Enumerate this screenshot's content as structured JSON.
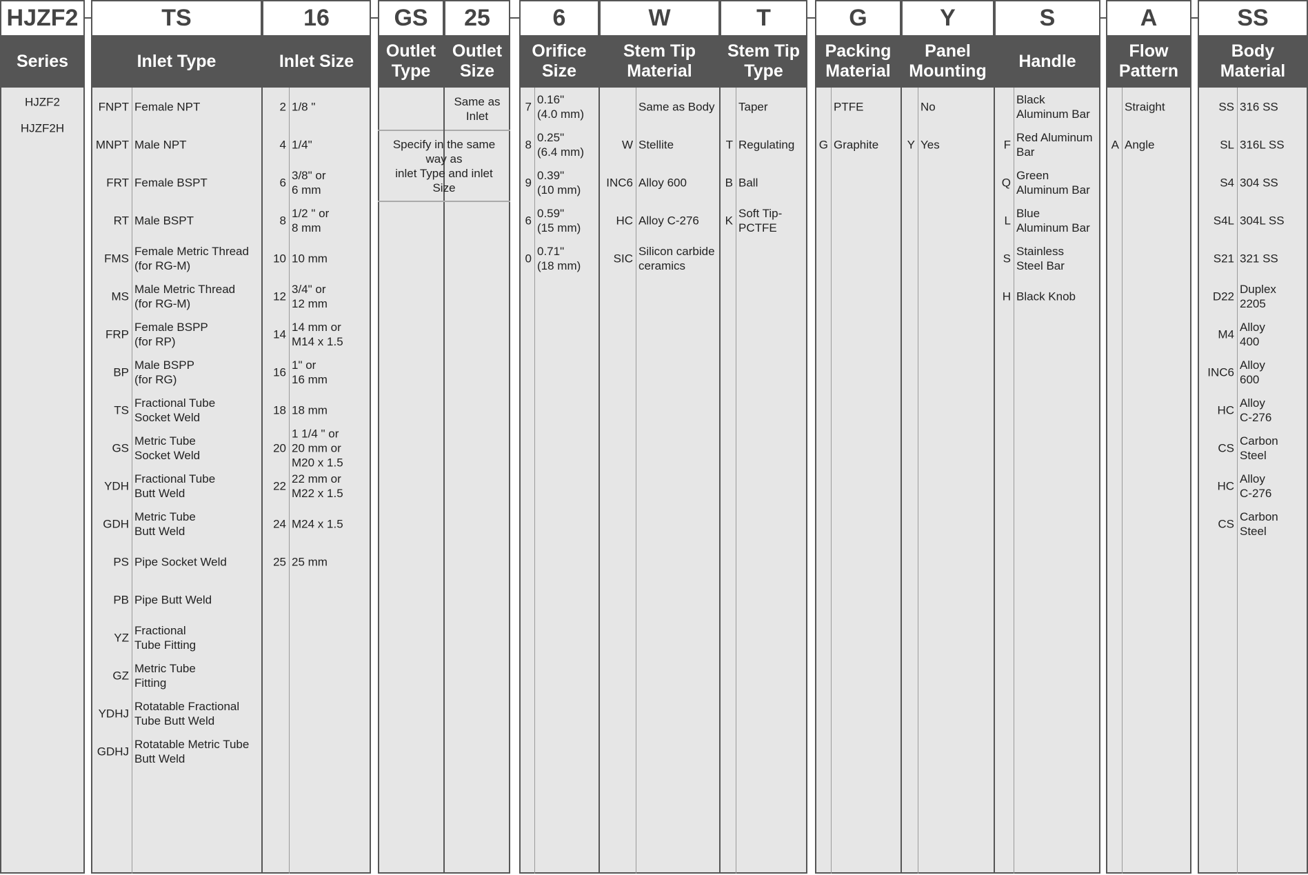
{
  "columns": [
    {
      "key": "series",
      "code": "HJZF2",
      "header": "Series",
      "rows": [
        {
          "code": "",
          "label": "HJZF2"
        },
        {
          "code": "",
          "label": "HJZF2H"
        }
      ]
    },
    {
      "key": "inlet_type",
      "code": "TS",
      "header": "Inlet Type",
      "rows": [
        {
          "code": "FNPT",
          "label": "Female NPT"
        },
        {
          "code": "MNPT",
          "label": "Male NPT"
        },
        {
          "code": "FRT",
          "label": "Female BSPT"
        },
        {
          "code": "RT",
          "label": "Male BSPT"
        },
        {
          "code": "FMS",
          "label": "Female Metric Thread\n(for RG-M)"
        },
        {
          "code": "MS",
          "label": "Male Metric Thread\n(for RG-M)"
        },
        {
          "code": "FRP",
          "label": "Female BSPP\n(for RP)"
        },
        {
          "code": "BP",
          "label": "Male BSPP\n(for RG)"
        },
        {
          "code": "TS",
          "label": "Fractional Tube\nSocket Weld"
        },
        {
          "code": "GS",
          "label": "Metric Tube\nSocket Weld"
        },
        {
          "code": "YDH",
          "label": "Fractional Tube\nButt Weld"
        },
        {
          "code": "GDH",
          "label": "Metric Tube\nButt Weld"
        },
        {
          "code": "PS",
          "label": "Pipe Socket Weld"
        },
        {
          "code": "PB",
          "label": "Pipe Butt Weld"
        },
        {
          "code": "YZ",
          "label": "Fractional\nTube Fitting"
        },
        {
          "code": "GZ",
          "label": "Metric Tube\nFitting"
        },
        {
          "code": "YDHJ",
          "label": "Rotatable Fractional\nTube Butt Weld"
        },
        {
          "code": "GDHJ",
          "label": "Rotatable Metric Tube\nButt Weld"
        }
      ]
    },
    {
      "key": "inlet_size",
      "code": "16",
      "header": "Inlet Size",
      "rows": [
        {
          "code": "2",
          "label": "1/8 \""
        },
        {
          "code": "4",
          "label": "1/4\""
        },
        {
          "code": "6",
          "label": "3/8\" or\n6 mm"
        },
        {
          "code": "8",
          "label": "1/2 \" or\n8 mm"
        },
        {
          "code": "10",
          "label": "10 mm"
        },
        {
          "code": "12",
          "label": "3/4\" or\n12 mm"
        },
        {
          "code": "14",
          "label": "14 mm or\nM14 x 1.5"
        },
        {
          "code": "16",
          "label": "1\" or\n16 mm"
        },
        {
          "code": "18",
          "label": "18 mm"
        },
        {
          "code": "20",
          "label": "1 1/4 \" or\n20 mm or\nM20 x 1.5"
        },
        {
          "code": "22",
          "label": "22 mm or\nM22 x 1.5"
        },
        {
          "code": "24",
          "label": "M24 x 1.5"
        },
        {
          "code": "25",
          "label": "25 mm"
        }
      ]
    },
    {
      "key": "outlet_type",
      "code": "GS",
      "header": "Outlet\nType",
      "rows": []
    },
    {
      "key": "outlet_size",
      "code": "25",
      "header": "Outlet\nSize",
      "rows": []
    },
    {
      "key": "orifice",
      "code": "6",
      "header": "Orifice\nSize",
      "rows": [
        {
          "code": "7",
          "label": "0.16\"\n(4.0 mm)"
        },
        {
          "code": "8",
          "label": "0.25\"\n(6.4 mm)"
        },
        {
          "code": "9",
          "label": "0.39\"\n(10 mm)"
        },
        {
          "code": "6",
          "label": "0.59\"\n(15 mm)"
        },
        {
          "code": "0",
          "label": "0.71\"\n(18 mm)"
        }
      ]
    },
    {
      "key": "stem_material",
      "code": "W",
      "header": "Stem Tip\nMaterial",
      "rows": [
        {
          "code": "",
          "label": "Same as Body"
        },
        {
          "code": "W",
          "label": "Stellite"
        },
        {
          "code": "INC6",
          "label": "Alloy 600"
        },
        {
          "code": "HC",
          "label": "Alloy C-276"
        },
        {
          "code": "SIC",
          "label": "Silicon carbide\nceramics"
        }
      ]
    },
    {
      "key": "stem_type",
      "code": "T",
      "header": "Stem Tip\nType",
      "rows": [
        {
          "code": "",
          "label": "Taper"
        },
        {
          "code": "T",
          "label": "Regulating"
        },
        {
          "code": "B",
          "label": "Ball"
        },
        {
          "code": "K",
          "label": "Soft Tip-\nPCTFE"
        }
      ]
    },
    {
      "key": "packing",
      "code": "G",
      "header": "Packing\nMaterial",
      "rows": [
        {
          "code": "",
          "label": "PTFE"
        },
        {
          "code": "G",
          "label": "Graphite"
        }
      ]
    },
    {
      "key": "panel",
      "code": "Y",
      "header": "Panel\nMounting",
      "rows": [
        {
          "code": "",
          "label": "No"
        },
        {
          "code": "Y",
          "label": "Yes"
        }
      ]
    },
    {
      "key": "handle",
      "code": "S",
      "header": "Handle",
      "rows": [
        {
          "code": "",
          "label": "Black\nAluminum Bar"
        },
        {
          "code": "F",
          "label": "Red Aluminum\nBar"
        },
        {
          "code": "Q",
          "label": "Green\nAluminum Bar"
        },
        {
          "code": "L",
          "label": "Blue\nAluminum Bar"
        },
        {
          "code": "S",
          "label": "Stainless\nSteel Bar"
        },
        {
          "code": "H",
          "label": "Black Knob"
        }
      ]
    },
    {
      "key": "flow",
      "code": "A",
      "header": "Flow\nPattern",
      "rows": [
        {
          "code": "",
          "label": "Straight"
        },
        {
          "code": "A",
          "label": "Angle"
        }
      ]
    },
    {
      "key": "body",
      "code": "SS",
      "header": "Body\nMaterial",
      "rows": [
        {
          "code": "SS",
          "label": "316 SS"
        },
        {
          "code": "SL",
          "label": "316L SS"
        },
        {
          "code": "S4",
          "label": "304 SS"
        },
        {
          "code": "S4L",
          "label": "304L SS"
        },
        {
          "code": "S21",
          "label": "321 SS"
        },
        {
          "code": "D22",
          "label": "Duplex\n2205"
        },
        {
          "code": "M4",
          "label": "Alloy\n400"
        },
        {
          "code": "INC6",
          "label": "Alloy\n600"
        },
        {
          "code": "HC",
          "label": "Alloy\nC-276"
        },
        {
          "code": "CS",
          "label": "Carbon\nSteel"
        },
        {
          "code": "HC",
          "label": "Alloy\nC-276"
        },
        {
          "code": "CS",
          "label": "Carbon\nSteel"
        }
      ]
    }
  ],
  "outlet": {
    "same_note": "Same as\nInlet",
    "specify_note": "Specify in the same\nway as\ninlet Type and inlet\nSize"
  },
  "colors": {
    "header_band": "#555555",
    "body": "#e6e6e6",
    "border": "#555555"
  }
}
